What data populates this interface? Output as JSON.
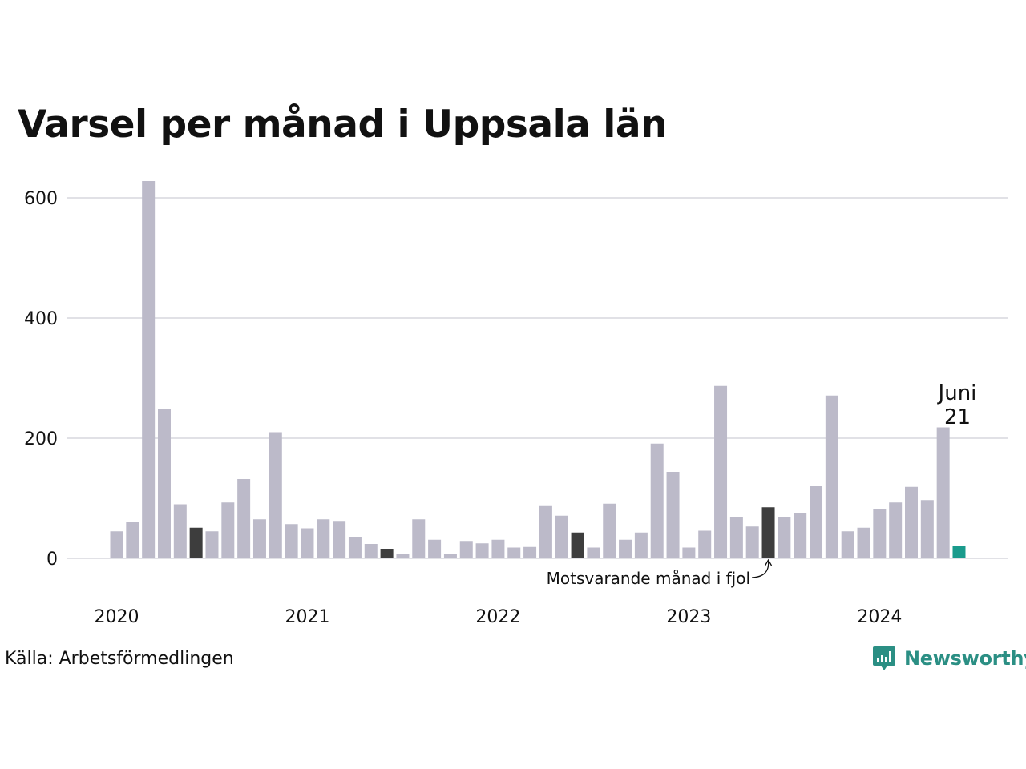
{
  "chart_data": {
    "type": "bar",
    "title": "Varsel per månad i Uppsala län",
    "xlabel": "",
    "ylabel": "",
    "ylim": [
      0,
      640
    ],
    "yticks": [
      0,
      200,
      400,
      600
    ],
    "grid": true,
    "xtick_labels": [
      {
        "label": "2020",
        "index": 0
      },
      {
        "label": "2021",
        "index": 12
      },
      {
        "label": "2022",
        "index": 24
      },
      {
        "label": "2023",
        "index": 36
      },
      {
        "label": "2024",
        "index": 48
      }
    ],
    "categories": [
      "2020-01",
      "2020-02",
      "2020-03",
      "2020-04",
      "2020-05",
      "2020-06",
      "2020-07",
      "2020-08",
      "2020-09",
      "2020-10",
      "2020-11",
      "2020-12",
      "2021-01",
      "2021-02",
      "2021-03",
      "2021-04",
      "2021-05",
      "2021-06",
      "2021-07",
      "2021-08",
      "2021-09",
      "2021-10",
      "2021-11",
      "2021-12",
      "2022-01",
      "2022-02",
      "2022-03",
      "2022-04",
      "2022-05",
      "2022-06",
      "2022-07",
      "2022-08",
      "2022-09",
      "2022-10",
      "2022-11",
      "2022-12",
      "2023-01",
      "2023-02",
      "2023-03",
      "2023-04",
      "2023-05",
      "2023-06",
      "2023-07",
      "2023-08",
      "2023-09",
      "2023-10",
      "2023-11",
      "2023-12",
      "2024-01",
      "2024-02",
      "2024-03",
      "2024-04",
      "2024-05",
      "2024-06"
    ],
    "values": [
      45,
      60,
      628,
      248,
      90,
      51,
      45,
      93,
      132,
      65,
      210,
      57,
      50,
      65,
      61,
      36,
      24,
      16,
      7,
      65,
      31,
      7,
      29,
      25,
      31,
      18,
      19,
      87,
      71,
      43,
      18,
      91,
      31,
      43,
      191,
      144,
      18,
      46,
      287,
      69,
      53,
      85,
      69,
      75,
      120,
      271,
      45,
      51,
      82,
      93,
      119,
      97,
      218,
      21
    ],
    "highlight_same_month": [
      5,
      17,
      29,
      41
    ],
    "current_index": 53,
    "colors": {
      "default": "#bcbac9",
      "same_month": "#3d3d3d",
      "current": "#1a9b8c",
      "grid": "#e1e1e6"
    },
    "annotations": {
      "current_label": "Juni",
      "current_value": "21",
      "same_month_note": "Motsvarande månad i fjol"
    }
  },
  "footer": {
    "source": "Källa: Arbetsförmedlingen",
    "brand": "Newsworthy",
    "brand_icon": "newsworthy-logo-icon"
  }
}
